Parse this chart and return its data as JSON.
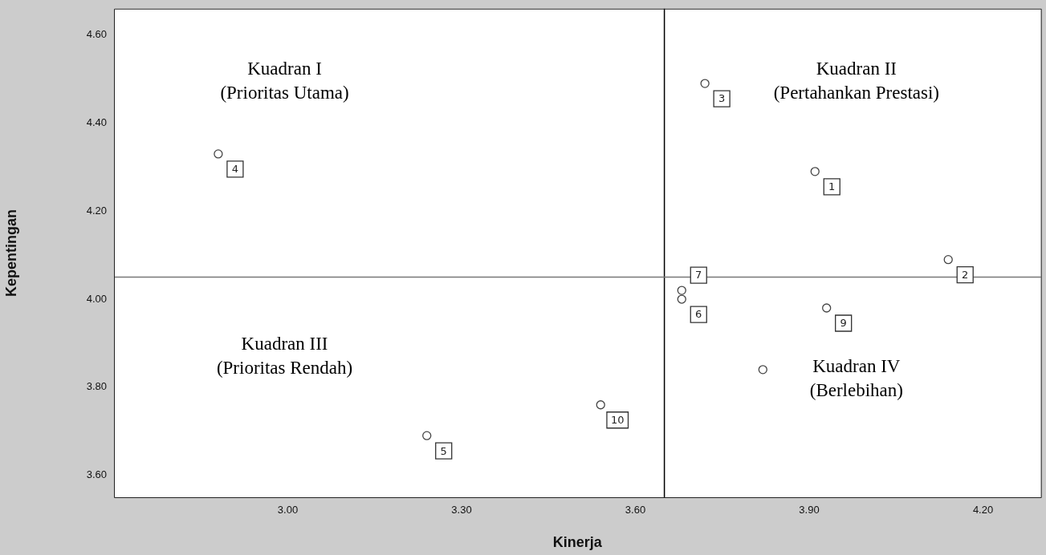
{
  "chart_data": {
    "type": "scatter",
    "xlabel": "Kinerja",
    "ylabel": "Kepentingan",
    "x": [
      3.91,
      4.14,
      3.72,
      2.88,
      3.24,
      3.68,
      3.68,
      3.82,
      3.93,
      3.54
    ],
    "values": [
      4.29,
      4.09,
      4.49,
      4.33,
      3.69,
      4.0,
      4.02,
      3.84,
      3.98,
      3.76
    ],
    "color": "#444444",
    "marker": "circle",
    "xlim": [
      2.7,
      4.3
    ],
    "xticks": [
      {
        "value": 3.0,
        "label": "3.00"
      },
      {
        "value": 3.3,
        "label": "3.30"
      },
      {
        "value": 3.6,
        "label": "3.60"
      },
      {
        "value": 3.9,
        "label": "3.90"
      },
      {
        "value": 4.2,
        "label": "4.20"
      }
    ],
    "ylim": [
      3.55,
      4.66
    ],
    "yticks": [
      {
        "value": 3.6,
        "label": "3.60"
      },
      {
        "value": 3.8,
        "label": "3.80"
      },
      {
        "value": 4.0,
        "label": "4.00"
      },
      {
        "value": 4.2,
        "label": "4.20"
      },
      {
        "value": 4.4,
        "label": "4.40"
      },
      {
        "value": 4.6,
        "label": "4.60"
      }
    ],
    "ref_lines": [
      {
        "axis": "x",
        "value": 3.65,
        "color": "#000000"
      },
      {
        "axis": "y",
        "value": 4.05,
        "color": "#777777"
      }
    ],
    "annotations": [
      "Kuadran I\n(Prioritas Utama)",
      "Kuadran II\n(Pertahankan Prestasi)",
      "Kuadran III\n(Prioritas Rendah)",
      "Kuadran IV\n(Berlebihan)",
      {
        "text": "1",
        "x": 3.91,
        "y": 4.29
      },
      {
        "text": "2",
        "x": 4.14,
        "y": 4.09
      },
      {
        "text": "3",
        "x": 3.72,
        "y": 4.49
      },
      {
        "text": "4",
        "x": 2.88,
        "y": 4.33
      },
      {
        "text": "5",
        "x": 3.24,
        "y": 3.69
      },
      {
        "text": "6",
        "x": 3.68,
        "y": 4.0
      },
      {
        "text": "7",
        "x": 3.68,
        "y": 4.02
      },
      {
        "text": "9",
        "x": 3.93,
        "y": 3.98
      },
      {
        "text": "10",
        "x": 3.54,
        "y": 3.76
      }
    ],
    "grid": false,
    "legend": false
  }
}
